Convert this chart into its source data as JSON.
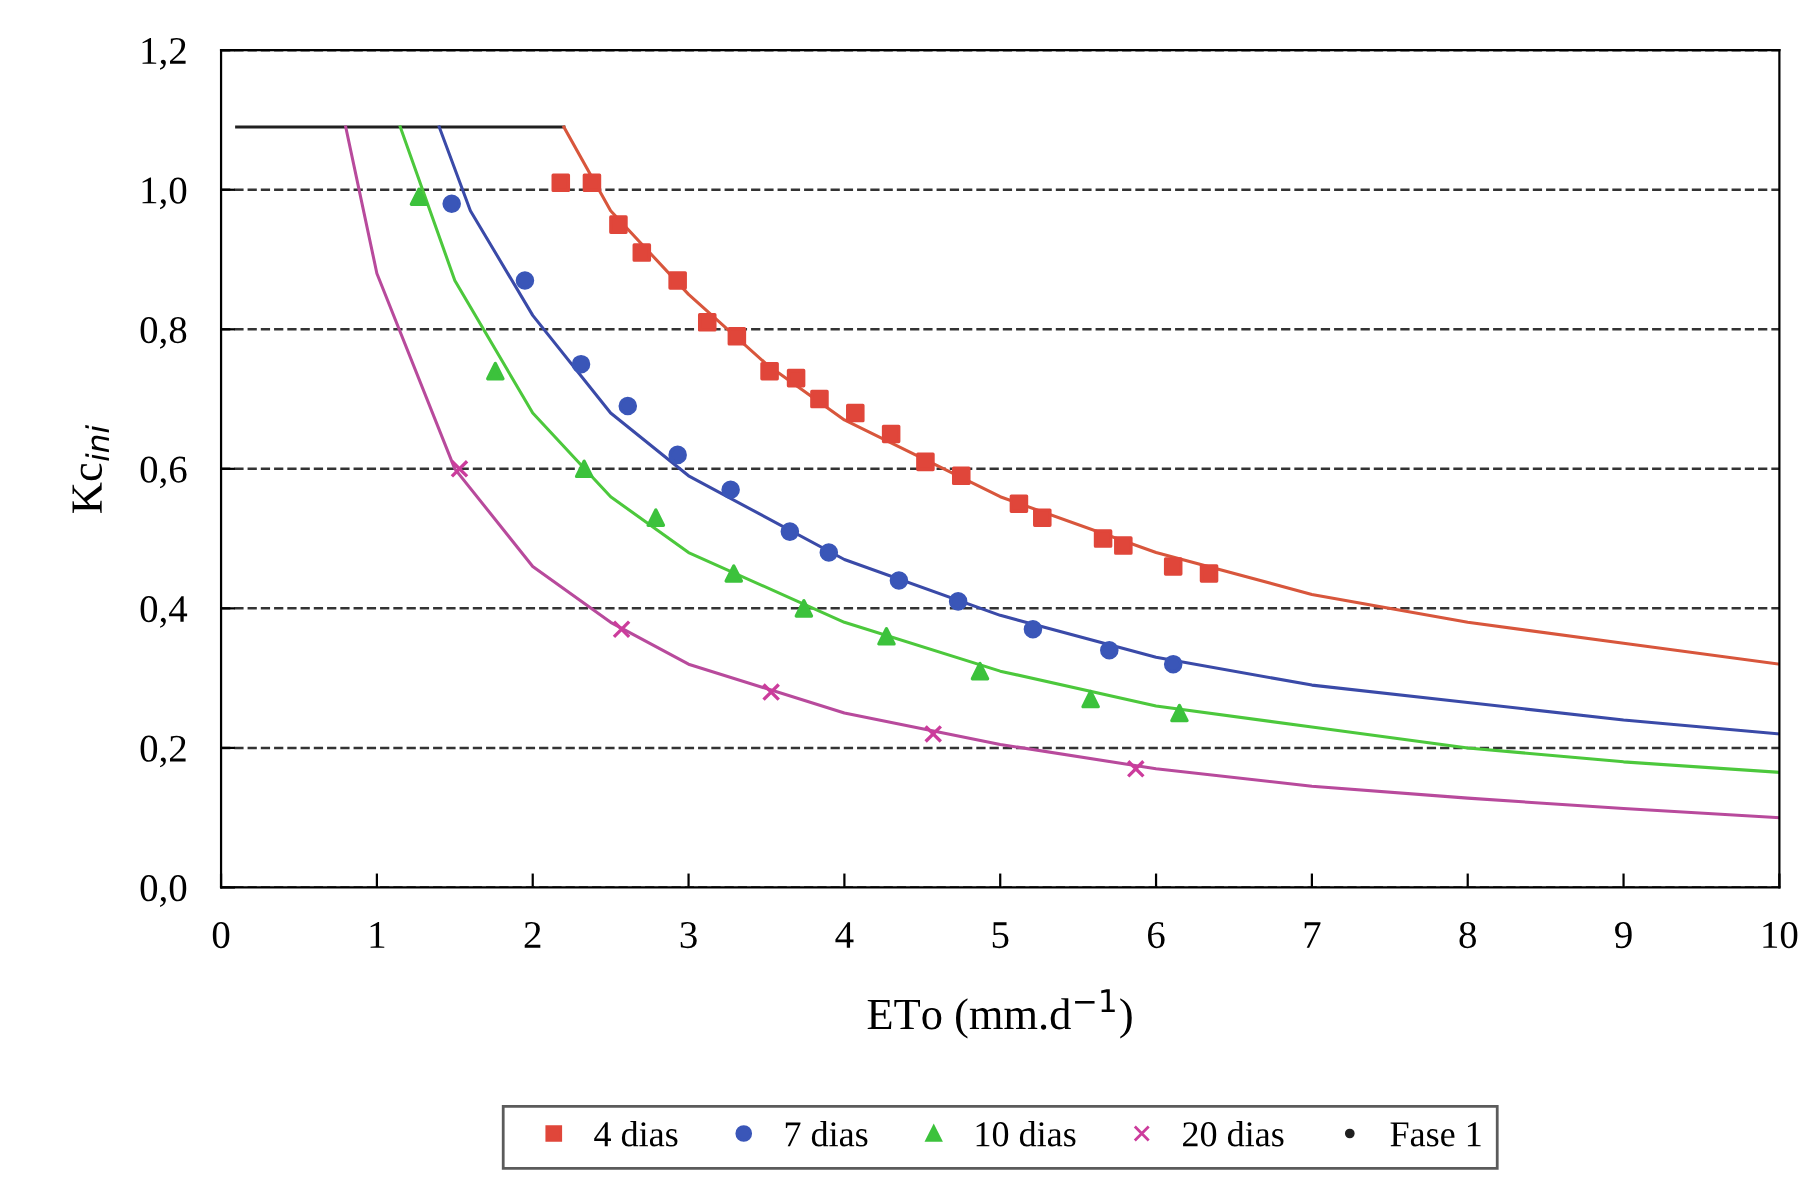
{
  "chart_data": {
    "type": "scatter",
    "xlabel": "ETo (mm.d$^{−1}$)",
    "ylabel": "Kc$_{ini}$",
    "xlim": [
      0,
      10
    ],
    "ylim": [
      0,
      1.2
    ],
    "xticks": [
      0,
      1,
      2,
      3,
      4,
      5,
      6,
      7,
      8,
      9,
      10
    ],
    "yticks": [
      {
        "value": 0,
        "label": "0,0"
      },
      {
        "value": 0.2,
        "label": "0,2"
      },
      {
        "value": 0.4,
        "label": "0,4"
      },
      {
        "value": 0.6,
        "label": "0,6"
      },
      {
        "value": 0.8,
        "label": "0,8"
      },
      {
        "value": 1.0,
        "label": "1,0"
      },
      {
        "value": 1.2,
        "label": "1,2"
      }
    ],
    "grid": "y",
    "legend": "bottom",
    "series": [
      {
        "name": "4 dias",
        "marker": "square",
        "color": "#e0463a",
        "x": [
          2.18,
          2.38,
          2.55,
          2.7,
          2.93,
          3.12,
          3.31,
          3.52,
          3.69,
          3.84,
          4.07,
          4.3,
          4.52,
          4.75,
          5.12,
          5.27,
          5.66,
          5.79,
          6.11,
          6.34
        ],
        "values": [
          1.01,
          1.01,
          0.95,
          0.91,
          0.87,
          0.81,
          0.79,
          0.74,
          0.73,
          0.7,
          0.68,
          0.65,
          0.61,
          0.59,
          0.55,
          0.53,
          0.5,
          0.49,
          0.46,
          0.45
        ]
      },
      {
        "name": "7 dias",
        "marker": "circle",
        "color": "#3a56b8",
        "x": [
          1.48,
          1.95,
          2.31,
          2.61,
          2.93,
          3.27,
          3.65,
          3.9,
          4.35,
          4.73,
          5.21,
          5.7,
          6.11
        ],
        "values": [
          0.98,
          0.87,
          0.75,
          0.69,
          0.62,
          0.57,
          0.51,
          0.48,
          0.44,
          0.41,
          0.37,
          0.34,
          0.32
        ]
      },
      {
        "name": "10 dias",
        "marker": "triangle",
        "color": "#3cc23c",
        "x": [
          1.27,
          1.76,
          2.33,
          2.79,
          3.29,
          3.74,
          4.27,
          4.87,
          5.58,
          6.15
        ],
        "values": [
          0.99,
          0.74,
          0.6,
          0.53,
          0.45,
          0.4,
          0.36,
          0.31,
          0.27,
          0.25
        ]
      },
      {
        "name": "20 dias",
        "marker": "cross",
        "color": "#cc3c9c",
        "x": [
          1.53,
          2.57,
          3.53,
          4.57,
          5.87
        ],
        "values": [
          0.6,
          0.37,
          0.28,
          0.22,
          0.17
        ]
      },
      {
        "name": "Fase 1",
        "type": "line",
        "color": "#202020",
        "x": [
          0.1,
          2.2
        ],
        "values": [
          1.09,
          1.09
        ]
      },
      {
        "type": "line",
        "color": "#d8563c",
        "x": [
          2.2,
          2.5,
          3,
          3.5,
          4,
          5,
          6,
          7,
          8,
          9,
          10
        ],
        "values": [
          1.09,
          0.97,
          0.85,
          0.75,
          0.67,
          0.56,
          0.48,
          0.42,
          0.38,
          0.35,
          0.32
        ]
      },
      {
        "type": "line",
        "color": "#3a4aa8",
        "x": [
          1.4,
          1.6,
          2,
          2.5,
          3,
          4,
          5,
          6,
          7,
          8,
          9,
          10
        ],
        "values": [
          1.09,
          0.97,
          0.82,
          0.68,
          0.59,
          0.47,
          0.39,
          0.33,
          0.29,
          0.265,
          0.24,
          0.22
        ]
      },
      {
        "type": "line",
        "color": "#4cc83c",
        "x": [
          1.15,
          1.5,
          2,
          2.5,
          3,
          4,
          5,
          6,
          7,
          8,
          9,
          10
        ],
        "values": [
          1.09,
          0.87,
          0.68,
          0.56,
          0.48,
          0.38,
          0.31,
          0.26,
          0.23,
          0.2,
          0.18,
          0.165
        ]
      },
      {
        "type": "line",
        "color": "#b84a9c",
        "x": [
          0.8,
          1,
          1.5,
          2,
          2.5,
          3,
          4,
          5,
          6,
          7,
          8,
          9,
          10
        ],
        "values": [
          1.09,
          0.88,
          0.6,
          0.46,
          0.38,
          0.32,
          0.25,
          0.205,
          0.17,
          0.145,
          0.128,
          0.113,
          0.1
        ]
      }
    ]
  }
}
